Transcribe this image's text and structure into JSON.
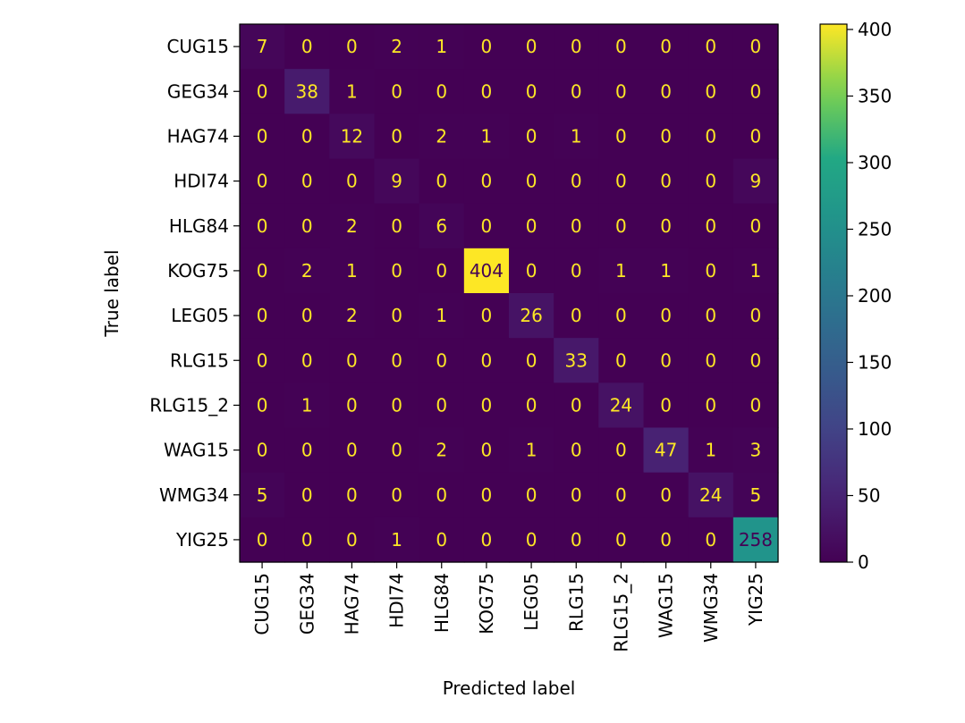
{
  "chart_data": {
    "type": "heatmap",
    "title": "",
    "xlabel": "Predicted label",
    "ylabel": "True label",
    "labels": [
      "CUG15",
      "GEG34",
      "HAG74",
      "HDI74",
      "HLG84",
      "KOG75",
      "LEG05",
      "RLG15",
      "RLG15_2",
      "WAG15",
      "WMG34",
      "YIG25"
    ],
    "matrix": [
      [
        7,
        0,
        0,
        2,
        1,
        0,
        0,
        0,
        0,
        0,
        0,
        0
      ],
      [
        0,
        38,
        1,
        0,
        0,
        0,
        0,
        0,
        0,
        0,
        0,
        0
      ],
      [
        0,
        0,
        12,
        0,
        2,
        1,
        0,
        1,
        0,
        0,
        0,
        0
      ],
      [
        0,
        0,
        0,
        9,
        0,
        0,
        0,
        0,
        0,
        0,
        0,
        9
      ],
      [
        0,
        0,
        2,
        0,
        6,
        0,
        0,
        0,
        0,
        0,
        0,
        0
      ],
      [
        0,
        2,
        1,
        0,
        0,
        404,
        0,
        0,
        1,
        1,
        0,
        1
      ],
      [
        0,
        0,
        2,
        0,
        1,
        0,
        26,
        0,
        0,
        0,
        0,
        0
      ],
      [
        0,
        0,
        0,
        0,
        0,
        0,
        0,
        33,
        0,
        0,
        0,
        0
      ],
      [
        0,
        1,
        0,
        0,
        0,
        0,
        0,
        0,
        24,
        0,
        0,
        0
      ],
      [
        0,
        0,
        0,
        0,
        2,
        0,
        1,
        0,
        0,
        47,
        1,
        3
      ],
      [
        5,
        0,
        0,
        0,
        0,
        0,
        0,
        0,
        0,
        0,
        24,
        5
      ],
      [
        0,
        0,
        0,
        1,
        0,
        0,
        0,
        0,
        0,
        0,
        0,
        258
      ]
    ],
    "colormap": "viridis",
    "vmin": 0,
    "vmax": 404,
    "colorbar_ticks": [
      0,
      50,
      100,
      150,
      200,
      250,
      300,
      350,
      400
    ],
    "text_color_light": "#fde725",
    "text_color_dark": "#440154"
  }
}
